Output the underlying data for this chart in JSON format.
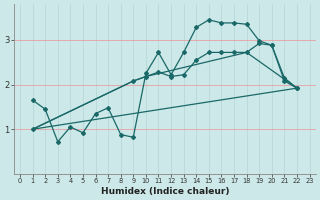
{
  "xlabel": "Humidex (Indice chaleur)",
  "bg_color": "#cce8e8",
  "grid_color_h": "#e8a0a0",
  "grid_color_v": "#b8d8d8",
  "line_color": "#1a6868",
  "xlim": [
    -0.5,
    23.5
  ],
  "ylim": [
    0.0,
    3.8
  ],
  "yticks": [
    1,
    2,
    3
  ],
  "xticks": [
    0,
    1,
    2,
    3,
    4,
    5,
    6,
    7,
    8,
    9,
    10,
    11,
    12,
    13,
    14,
    15,
    16,
    17,
    18,
    19,
    20,
    21,
    22,
    23
  ],
  "curve1_x": [
    1,
    2,
    3,
    4,
    5,
    6,
    7,
    8,
    9,
    10,
    11,
    12,
    13,
    14,
    15,
    16,
    17,
    18,
    19,
    20,
    21,
    22
  ],
  "curve1_y": [
    1.65,
    1.45,
    0.72,
    1.05,
    0.92,
    1.35,
    1.48,
    0.88,
    0.82,
    2.25,
    2.72,
    2.22,
    2.72,
    3.28,
    3.45,
    3.38,
    3.38,
    3.35,
    2.98,
    2.88,
    2.15,
    1.92
  ],
  "curve2_x": [
    1,
    9,
    10,
    11,
    12,
    13,
    14,
    15,
    16,
    17,
    18,
    19,
    20,
    21,
    22
  ],
  "curve2_y": [
    1.0,
    2.08,
    2.18,
    2.28,
    2.18,
    2.22,
    2.55,
    2.72,
    2.72,
    2.72,
    2.72,
    2.92,
    2.88,
    2.08,
    1.92
  ],
  "curve3_x": [
    1,
    22
  ],
  "curve3_y": [
    1.0,
    1.92
  ],
  "curve4_x": [
    1,
    9,
    10,
    18,
    22
  ],
  "curve4_y": [
    1.0,
    2.08,
    2.18,
    2.72,
    1.92
  ]
}
